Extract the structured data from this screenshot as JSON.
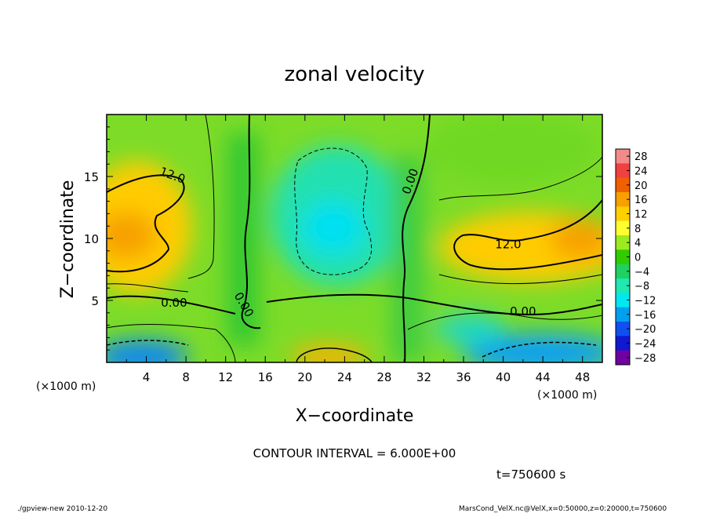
{
  "chart_data": {
    "type": "heatmap",
    "title": "zonal velocity",
    "xlabel": "X−coordinate",
    "ylabel": "Z−coordinate",
    "x_unit": "(×1000 m)",
    "y_unit": "(×1000 m)",
    "xlim": [
      0,
      50
    ],
    "ylim": [
      0,
      20
    ],
    "x_ticks": [
      "4",
      "8",
      "12",
      "16",
      "20",
      "24",
      "28",
      "32",
      "36",
      "40",
      "44",
      "48"
    ],
    "y_ticks": [
      "5",
      "10",
      "15"
    ],
    "colorbar_labels": [
      "28",
      "24",
      "20",
      "16",
      "12",
      "8",
      "4",
      "0",
      "−4",
      "−8",
      "−12",
      "−16",
      "−20",
      "−24",
      "−28"
    ],
    "colorbar_colors": [
      "#f28a8a",
      "#f04040",
      "#f06000",
      "#f7a000",
      "#ffd000",
      "#ffff30",
      "#9cea20",
      "#30cc00",
      "#20d060",
      "#20e8b0",
      "#00e8f0",
      "#00a0f0",
      "#1050f0",
      "#1018d0",
      "#7000a0"
    ],
    "contour_labels": [
      {
        "text": "12.0",
        "x": 6.5,
        "z": 14.8,
        "angle": 20
      },
      {
        "text": "12.0",
        "x": 40.5,
        "z": 9.2,
        "angle": 0
      },
      {
        "text": "0.00",
        "x": 6.8,
        "z": 4.5,
        "angle": 0
      },
      {
        "text": "0.00",
        "x": 42.0,
        "z": 3.8,
        "angle": 0
      },
      {
        "text": "0.00",
        "x": 31.0,
        "z": 14.5,
        "angle": -70
      },
      {
        "text": "0.00",
        "x": 13.5,
        "z": 4.5,
        "angle": 60
      }
    ],
    "contour_interval_text": "CONTOUR INTERVAL = 6.000E+00",
    "time_text": "t=750600 s",
    "footer_left": "./gpview-new   2010-12-20",
    "footer_right": "MarsCond_VelX.nc@VelX,x=0:50000,z=0:20000,t=750600"
  }
}
